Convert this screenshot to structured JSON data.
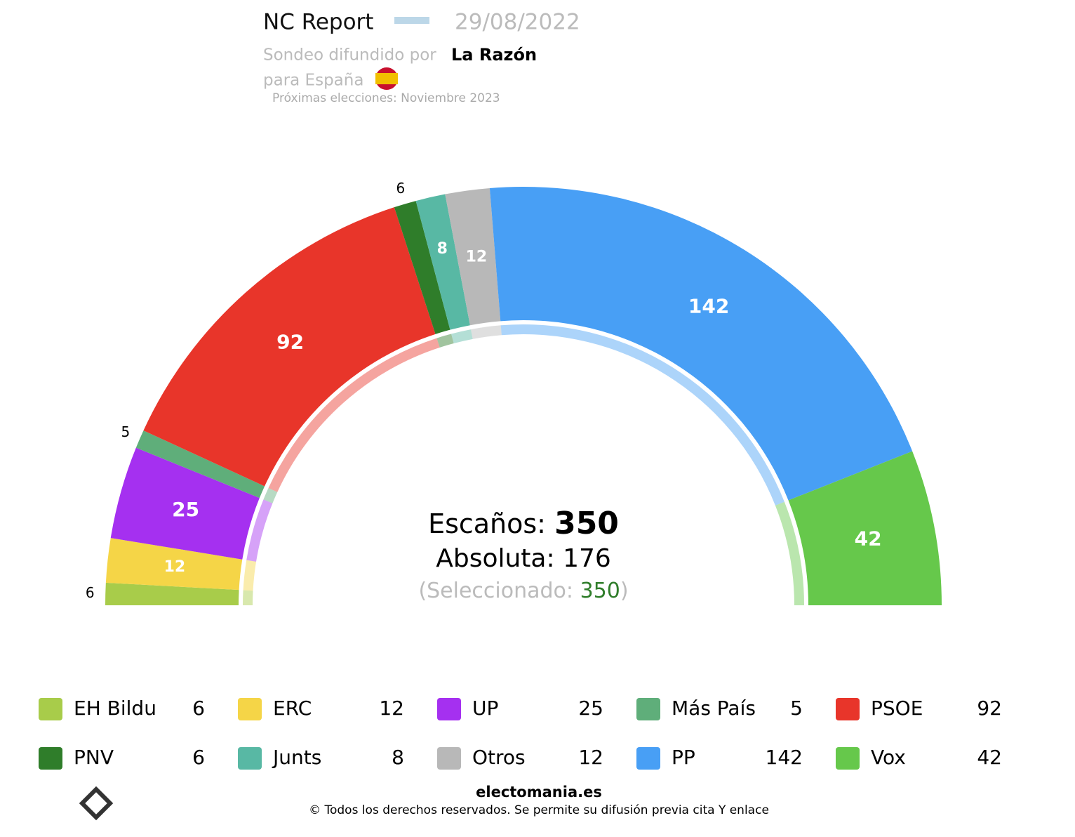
{
  "chart_data": {
    "type": "hemicycle",
    "title": "NC Report",
    "date": "29/08/2022",
    "subtitle_prefix": "Sondeo difundido por",
    "media": "La Razón",
    "region": "para España",
    "next_election": "Próximas elecciones: Noviembre 2023",
    "categories": [
      "EH Bildu",
      "ERC",
      "UP",
      "Más País",
      "PSOE",
      "PNV",
      "Junts",
      "Otros",
      "PP",
      "Vox"
    ],
    "values": [
      6,
      12,
      25,
      5,
      92,
      6,
      8,
      12,
      142,
      42
    ],
    "colors": [
      "#a8cc4a",
      "#f5d547",
      "#a530f0",
      "#5fae7a",
      "#e8352a",
      "#2f7d2a",
      "#58b8a4",
      "#b8b8b8",
      "#489ff5",
      "#66c84b"
    ],
    "seats_label": "Escaños:",
    "seats": 350,
    "majority_label": "Absoluta:",
    "majority": 176,
    "selected_label": "(Seleccionado:",
    "selected": 350,
    "selected_suffix": ")"
  },
  "footer": {
    "site": "electomania.es",
    "copyright": "© Todos los derechos reservados. Se permite su difusión previa cita Y enlace"
  }
}
